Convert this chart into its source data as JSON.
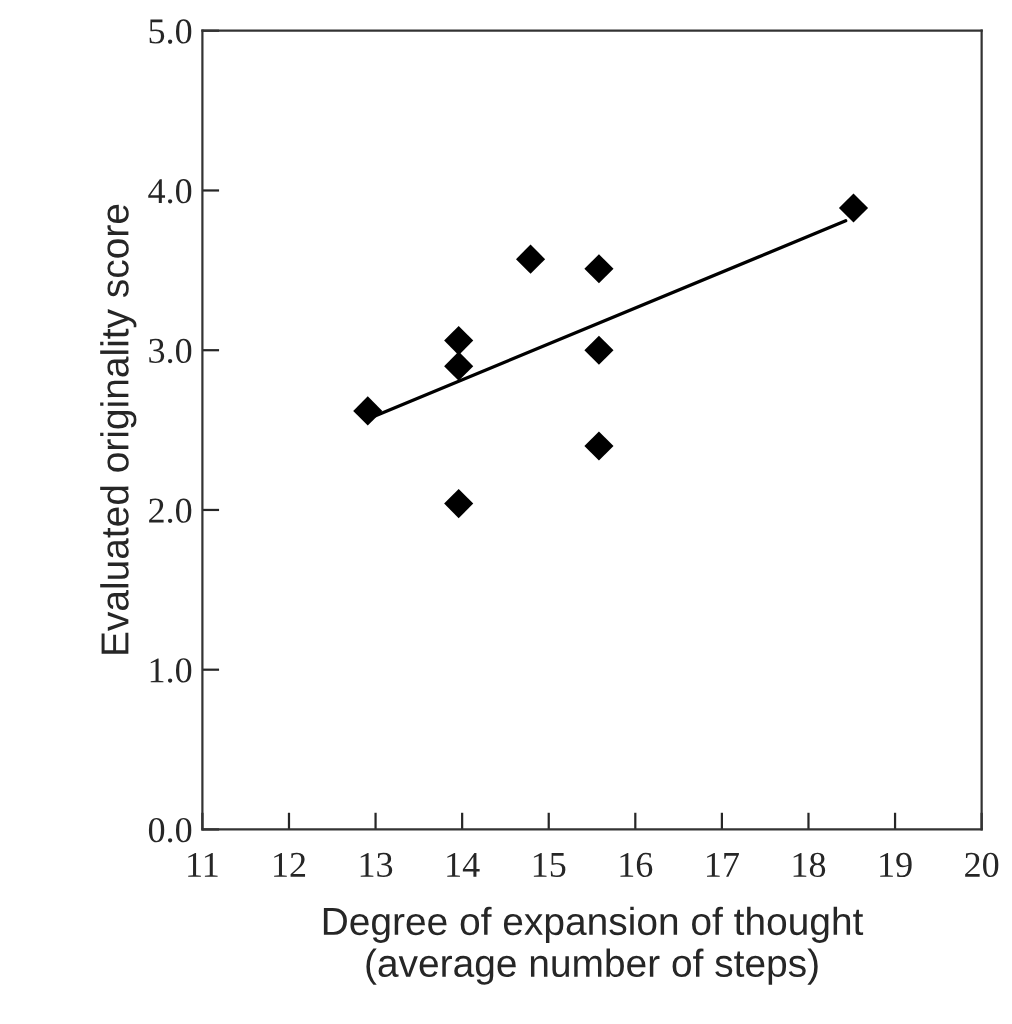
{
  "chart_data": {
    "type": "scatter",
    "xlabel": "Degree of expansion of thought\n(average number of steps)",
    "ylabel": "Evaluated originality score",
    "series": [
      {
        "color": "#000000",
        "marker": "diamond",
        "x": [
          12.91,
          13.96,
          13.96,
          13.96,
          14.79,
          15.58,
          15.58,
          15.58,
          18.52
        ],
        "values": [
          2.62,
          3.06,
          2.9,
          2.04,
          3.57,
          3.51,
          3.0,
          2.4,
          3.89
        ]
      },
      {
        "type": "line",
        "color": "#000000",
        "x": [
          13.0,
          18.43
        ],
        "values": [
          2.59,
          3.81
        ]
      }
    ],
    "xlim": [
      11,
      20
    ],
    "xticks": [
      11,
      12,
      13,
      14,
      15,
      16,
      17,
      18,
      19,
      20
    ],
    "ylim": [
      0,
      5
    ],
    "yticks": [
      {
        "value": 0,
        "label": "0.0"
      },
      {
        "value": 1,
        "label": "1.0"
      },
      {
        "value": 2,
        "label": "2.0"
      },
      {
        "value": 3,
        "label": "3.0"
      },
      {
        "value": 4,
        "label": "4.0"
      },
      {
        "value": 5,
        "label": "5.0"
      }
    ],
    "grid": false,
    "legend": false
  }
}
